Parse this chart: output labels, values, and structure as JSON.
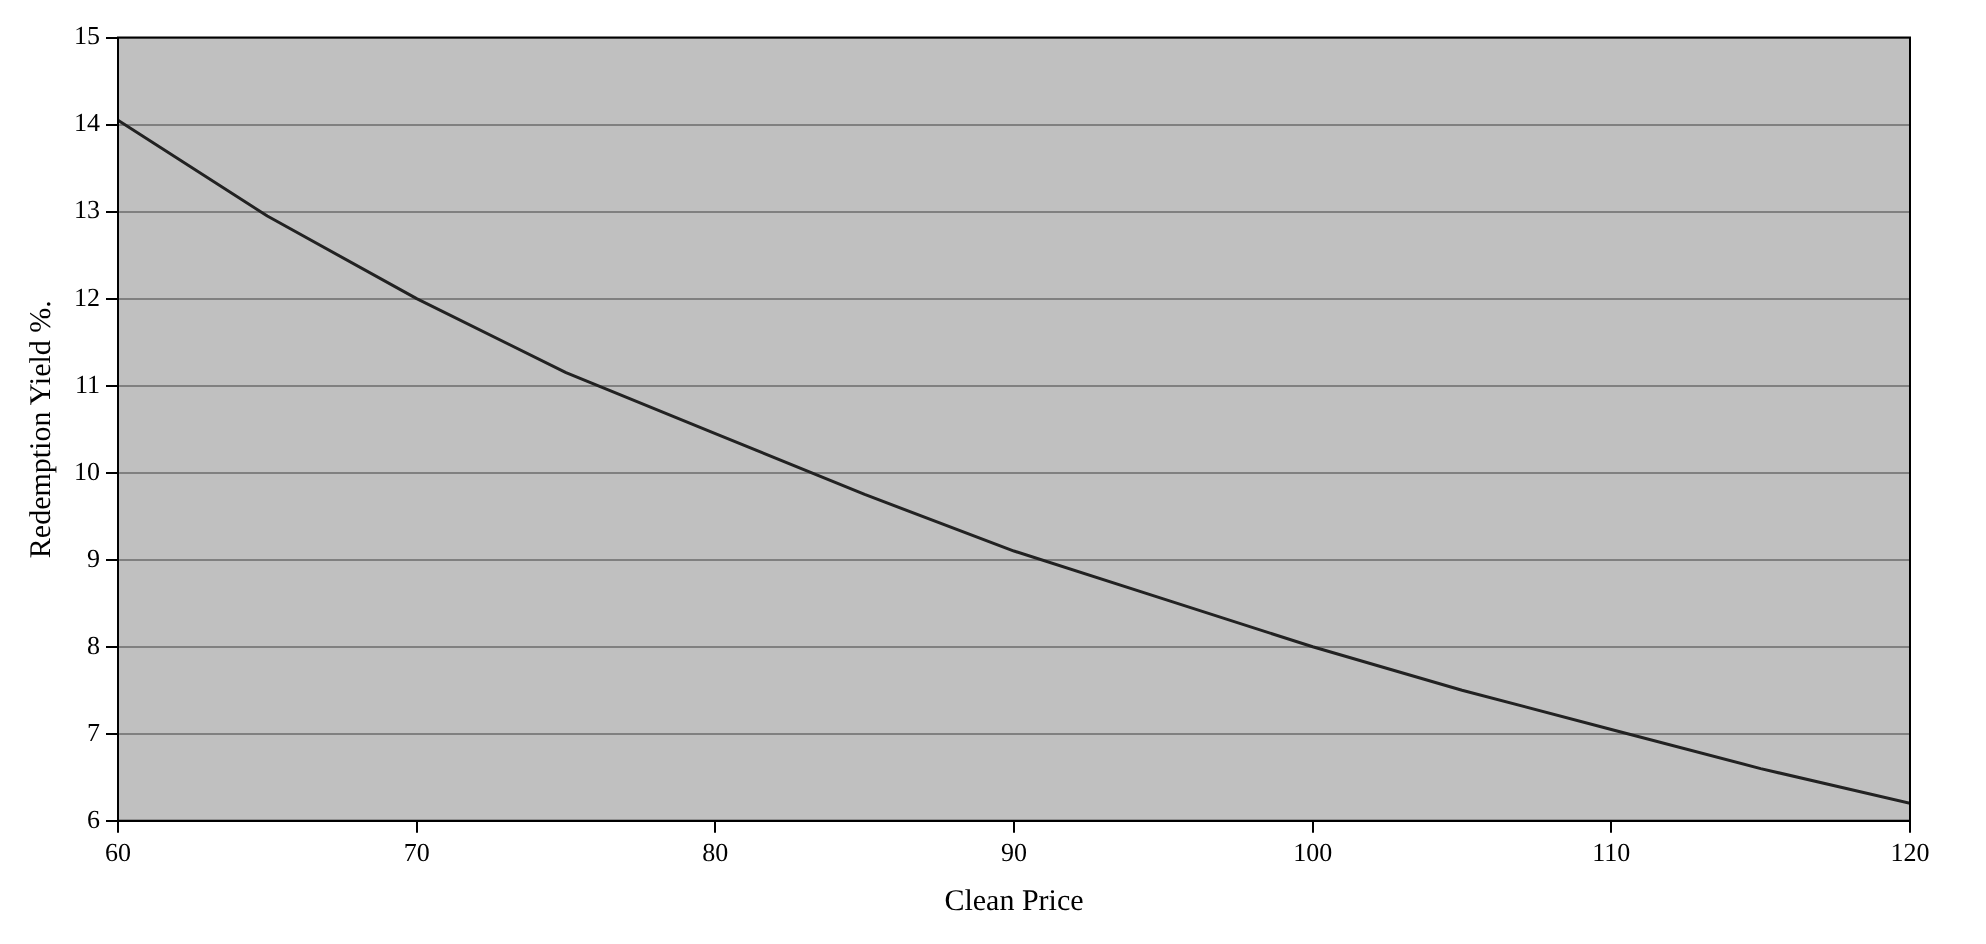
{
  "chart_data": {
    "type": "line",
    "xlabel": "Clean Price",
    "ylabel": "Redemption Yield %.",
    "x": [
      60,
      65,
      70,
      75,
      80,
      85,
      90,
      95,
      100,
      105,
      110,
      115,
      120
    ],
    "series": [
      {
        "color": "#222222",
        "values": [
          14.05,
          12.95,
          12.0,
          11.15,
          10.45,
          9.75,
          9.1,
          8.55,
          8.0,
          7.5,
          7.05,
          6.6,
          6.2
        ]
      }
    ],
    "xlim": [
      60,
      120
    ],
    "xticks": [
      60,
      70,
      80,
      90,
      100,
      110,
      120
    ],
    "ylim": [
      6,
      15
    ],
    "yticks": [
      6,
      7,
      8,
      9,
      10,
      11,
      12,
      13,
      14,
      15
    ],
    "grid": "y",
    "legend": false,
    "marker": "none",
    "line_style": "solid"
  }
}
